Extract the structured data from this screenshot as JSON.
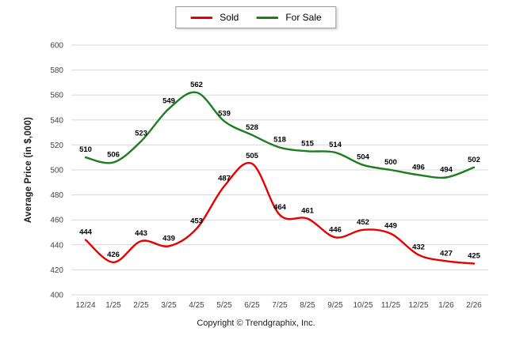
{
  "legend": {
    "items": [
      {
        "label": "Sold",
        "color": "#e80000"
      },
      {
        "label": "For Sale",
        "color": "#1e7d1e"
      }
    ]
  },
  "ylabel": "Average Price (in $,000)",
  "footer": {
    "copyright": "Copyright © Trendgraphix, Inc."
  },
  "chart_data": {
    "type": "line",
    "title": "",
    "categories": [
      "12/24",
      "1/25",
      "2/25",
      "3/25",
      "4/25",
      "5/25",
      "6/25",
      "7/25",
      "8/25",
      "9/25",
      "10/25",
      "11/25",
      "12/25",
      "1/26",
      "2/26"
    ],
    "series": [
      {
        "name": "Sold",
        "color": "#e80000",
        "values": [
          444,
          426,
          443,
          439,
          453,
          487,
          505,
          464,
          461,
          446,
          452,
          449,
          432,
          427,
          425
        ]
      },
      {
        "name": "For Sale",
        "color": "#1e7d1e",
        "values": [
          510,
          506,
          523,
          549,
          562,
          539,
          528,
          518,
          515,
          514,
          504,
          500,
          496,
          494,
          502
        ]
      }
    ],
    "xlabel": "",
    "ylabel": "Average Price (in $,000)",
    "ylim": [
      400,
      600
    ],
    "ytick_step": 20,
    "grid": true,
    "legend_position": "top",
    "data_labels": true
  }
}
